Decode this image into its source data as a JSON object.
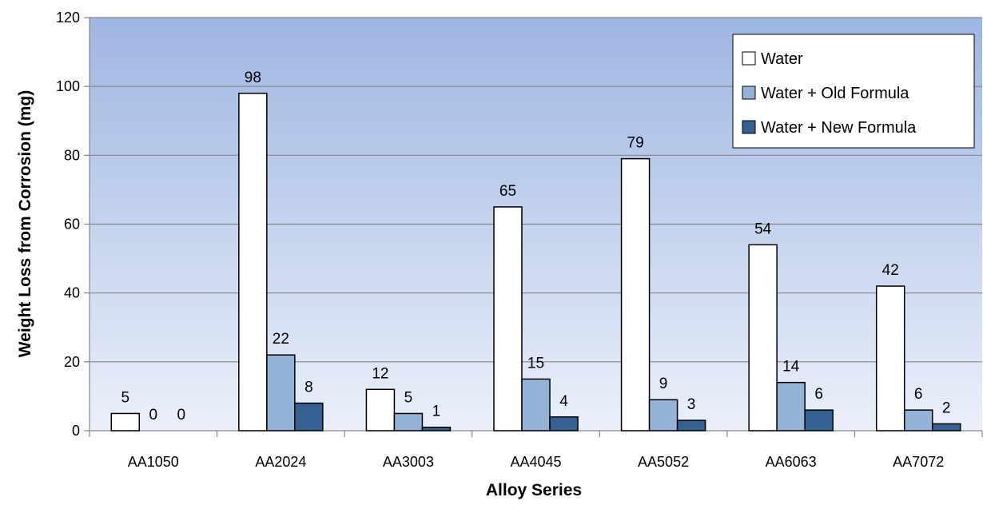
{
  "chart_data": {
    "type": "bar",
    "title": "",
    "xlabel": "Alloy Series",
    "ylabel": "Weight Loss from Corrosion (mg)",
    "ylim": [
      0,
      120
    ],
    "yticks": [
      0,
      20,
      40,
      60,
      80,
      100,
      120
    ],
    "ytick_labels": [
      "0",
      "20",
      "40",
      "60",
      "80",
      "100",
      "120"
    ],
    "grid": true,
    "legend_position": "top-right",
    "categories": [
      "AA1050",
      "AA2024",
      "AA3003",
      "AA4045",
      "AA5052",
      "AA6063",
      "AA7072"
    ],
    "series": [
      {
        "name": "Water",
        "color": "#ffffff",
        "values": [
          5,
          98,
          12,
          65,
          79,
          54,
          42
        ],
        "labels": [
          "5",
          "98",
          "12",
          "65",
          "79",
          "54",
          "42"
        ]
      },
      {
        "name": "Water + Old Formula",
        "color": "#95b3d7",
        "values": [
          0,
          22,
          5,
          15,
          9,
          14,
          6
        ],
        "labels": [
          "0",
          "22",
          "5",
          "15",
          "9",
          "14",
          "6"
        ]
      },
      {
        "name": "Water + New Formula",
        "color": "#366092",
        "values": [
          0,
          8,
          1,
          4,
          3,
          6,
          2
        ],
        "labels": [
          "0",
          "8",
          "1",
          "4",
          "3",
          "6",
          "2"
        ]
      }
    ],
    "plot_background": {
      "top": "#9db6e2",
      "bottom": "#ebf0fa"
    }
  }
}
